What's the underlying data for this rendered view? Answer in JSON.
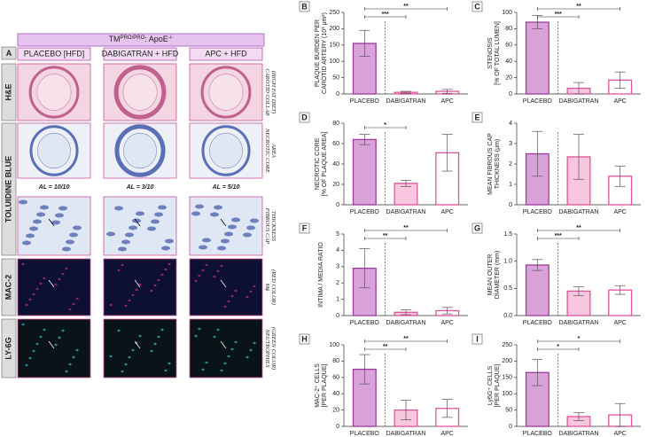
{
  "figure": {
    "panel_label": "A",
    "genotype": {
      "gene": "TM",
      "gene_sup": "PRO/PRO",
      "sep": ": ApoE",
      "apoe_sup": "-/-"
    },
    "columns": [
      "PLACEBO [HFD]",
      "DABIGATRAN + HFD",
      "APC + HFD"
    ],
    "rows": [
      "H&E",
      "TOLUIDINE BLUE",
      "MAC-2",
      "LY-6G"
    ],
    "annotations": [
      [
        "CAROTID COLLAR",
        "(HIGH FAT DIET)"
      ],
      [
        "NECROTIC CORE",
        "AREA"
      ],
      [
        "FIBROUS CAP",
        "THICKNESS"
      ],
      [
        "Mϕ",
        "(RED COLOR)"
      ],
      [
        "NEUTROPHILS",
        "(GREEN COLOR)"
      ]
    ],
    "al_labels": [
      "AL = 10/10",
      "AL = 3/10",
      "AL = 5/10"
    ]
  },
  "bar_style": {
    "fills": [
      "#d9a3d9",
      "#f8c6df",
      "#ffffff"
    ],
    "edges": [
      "#9b3c9b",
      "#e0559c",
      "#e0559c"
    ],
    "error_color": "#555555"
  },
  "chart_data": [
    {
      "type": "bar",
      "title": "B",
      "ylabel": [
        "PLAQUE BURDEN PER",
        "CAROTID ARTERY (10³ μm²)"
      ],
      "categories": [
        "PLACEBO",
        "DABIGATRAN",
        "APC"
      ],
      "values": [
        155,
        5,
        8
      ],
      "errors": [
        40,
        3,
        6
      ],
      "ylim": [
        0,
        250
      ],
      "yticks": [
        0,
        50,
        100,
        150,
        200,
        250
      ],
      "significance": [
        {
          "label": "***",
          "pair": [
            "PLACEBO",
            "DABIGATRAN"
          ]
        },
        {
          "label": "**",
          "pair": [
            "PLACEBO",
            "APC"
          ]
        }
      ]
    },
    {
      "type": "bar",
      "title": "C",
      "ylabel": [
        "STENOSIS",
        "[% OF TOTAL LUMEN]"
      ],
      "categories": [
        "PLACEBO",
        "DABIGATRAN",
        "APC"
      ],
      "values": [
        88,
        7,
        17
      ],
      "errors": [
        8,
        7,
        10
      ],
      "ylim": [
        0,
        100
      ],
      "yticks": [
        0,
        20,
        40,
        60,
        80,
        100
      ],
      "significance": [
        {
          "label": "***",
          "pair": [
            "PLACEBO",
            "DABIGATRAN"
          ]
        },
        {
          "label": "**",
          "pair": [
            "PLACEBO",
            "APC"
          ]
        }
      ]
    },
    {
      "type": "bar",
      "title": "D",
      "ylabel": [
        "NECROTIC CORE",
        "[% OF PLAQUE AREA]"
      ],
      "categories": [
        "PLACEBO",
        "DABIGATRAN",
        "APC"
      ],
      "values": [
        64,
        21,
        51
      ],
      "errors": [
        5,
        3,
        18
      ],
      "ylim": [
        0,
        80
      ],
      "yticks": [
        0,
        20,
        40,
        60,
        80
      ],
      "significance": [
        {
          "label": "*",
          "pair": [
            "PLACEBO",
            "DABIGATRAN"
          ]
        }
      ]
    },
    {
      "type": "bar",
      "title": "E",
      "ylabel": [
        "MEAN FIBROUS CAP",
        "THICKNESS (μm)"
      ],
      "categories": [
        "PLACEBO",
        "DABIGATRAN",
        "APC"
      ],
      "values": [
        2.5,
        2.35,
        1.4
      ],
      "errors": [
        1.1,
        1.1,
        0.5
      ],
      "ylim": [
        0,
        4
      ],
      "yticks": [
        0,
        1,
        2,
        3,
        4
      ],
      "significance": []
    },
    {
      "type": "bar",
      "title": "F",
      "ylabel": [
        "INTIMA / MEDIA RATIO"
      ],
      "categories": [
        "PLACEBO",
        "DABIGATRAN",
        "APC"
      ],
      "values": [
        2.9,
        0.2,
        0.3
      ],
      "errors": [
        1.2,
        0.15,
        0.2
      ],
      "ylim": [
        0,
        5
      ],
      "yticks": [
        0,
        1,
        2,
        3,
        4,
        5
      ],
      "significance": [
        {
          "label": "**",
          "pair": [
            "PLACEBO",
            "DABIGATRAN"
          ]
        },
        {
          "label": "**",
          "pair": [
            "PLACEBO",
            "APC"
          ]
        }
      ]
    },
    {
      "type": "bar",
      "title": "G",
      "ylabel": [
        "MEAN OUTER",
        "DIAMETER (mm)"
      ],
      "categories": [
        "PLACEBO",
        "DABIGATRAN",
        "APC"
      ],
      "values": [
        0.93,
        0.45,
        0.47
      ],
      "errors": [
        0.1,
        0.08,
        0.08
      ],
      "ylim": [
        0,
        1.5
      ],
      "yticks": [
        {
          "value": 0,
          "label": "0.0"
        },
        0.5,
        {
          "value": 1,
          "label": "1.0"
        },
        1.5
      ],
      "significance": [
        {
          "label": "***",
          "pair": [
            "PLACEBO",
            "DABIGATRAN"
          ]
        },
        {
          "label": "**",
          "pair": [
            "PLACEBO",
            "APC"
          ]
        }
      ]
    },
    {
      "type": "bar",
      "title": "H",
      "ylabel": [
        "MAC-2⁺ CELLS",
        "[PER PLAQUE]"
      ],
      "categories": [
        "PLACEBO",
        "DABIGATRAN",
        "APC"
      ],
      "values": [
        70,
        20,
        22
      ],
      "errors": [
        18,
        12,
        11
      ],
      "ylim": [
        0,
        100
      ],
      "yticks": [
        0,
        20,
        40,
        60,
        80,
        100
      ],
      "significance": [
        {
          "label": "**",
          "pair": [
            "PLACEBO",
            "DABIGATRAN"
          ]
        },
        {
          "label": "**",
          "pair": [
            "PLACEBO",
            "APC"
          ]
        }
      ]
    },
    {
      "type": "bar",
      "title": "I",
      "ylabel": [
        "Ly6G⁺ CELLS",
        "[PER PLAQUE]"
      ],
      "categories": [
        "PLACEBO",
        "DABIGATRAN",
        "APC"
      ],
      "values": [
        165,
        30,
        35
      ],
      "errors": [
        40,
        12,
        35
      ],
      "ylim": [
        0,
        250
      ],
      "yticks": [
        0,
        50,
        100,
        150,
        200,
        250
      ],
      "significance": [
        {
          "label": "*",
          "pair": [
            "PLACEBO",
            "DABIGATRAN"
          ]
        },
        {
          "label": "*",
          "pair": [
            "PLACEBO",
            "APC"
          ]
        }
      ]
    }
  ]
}
